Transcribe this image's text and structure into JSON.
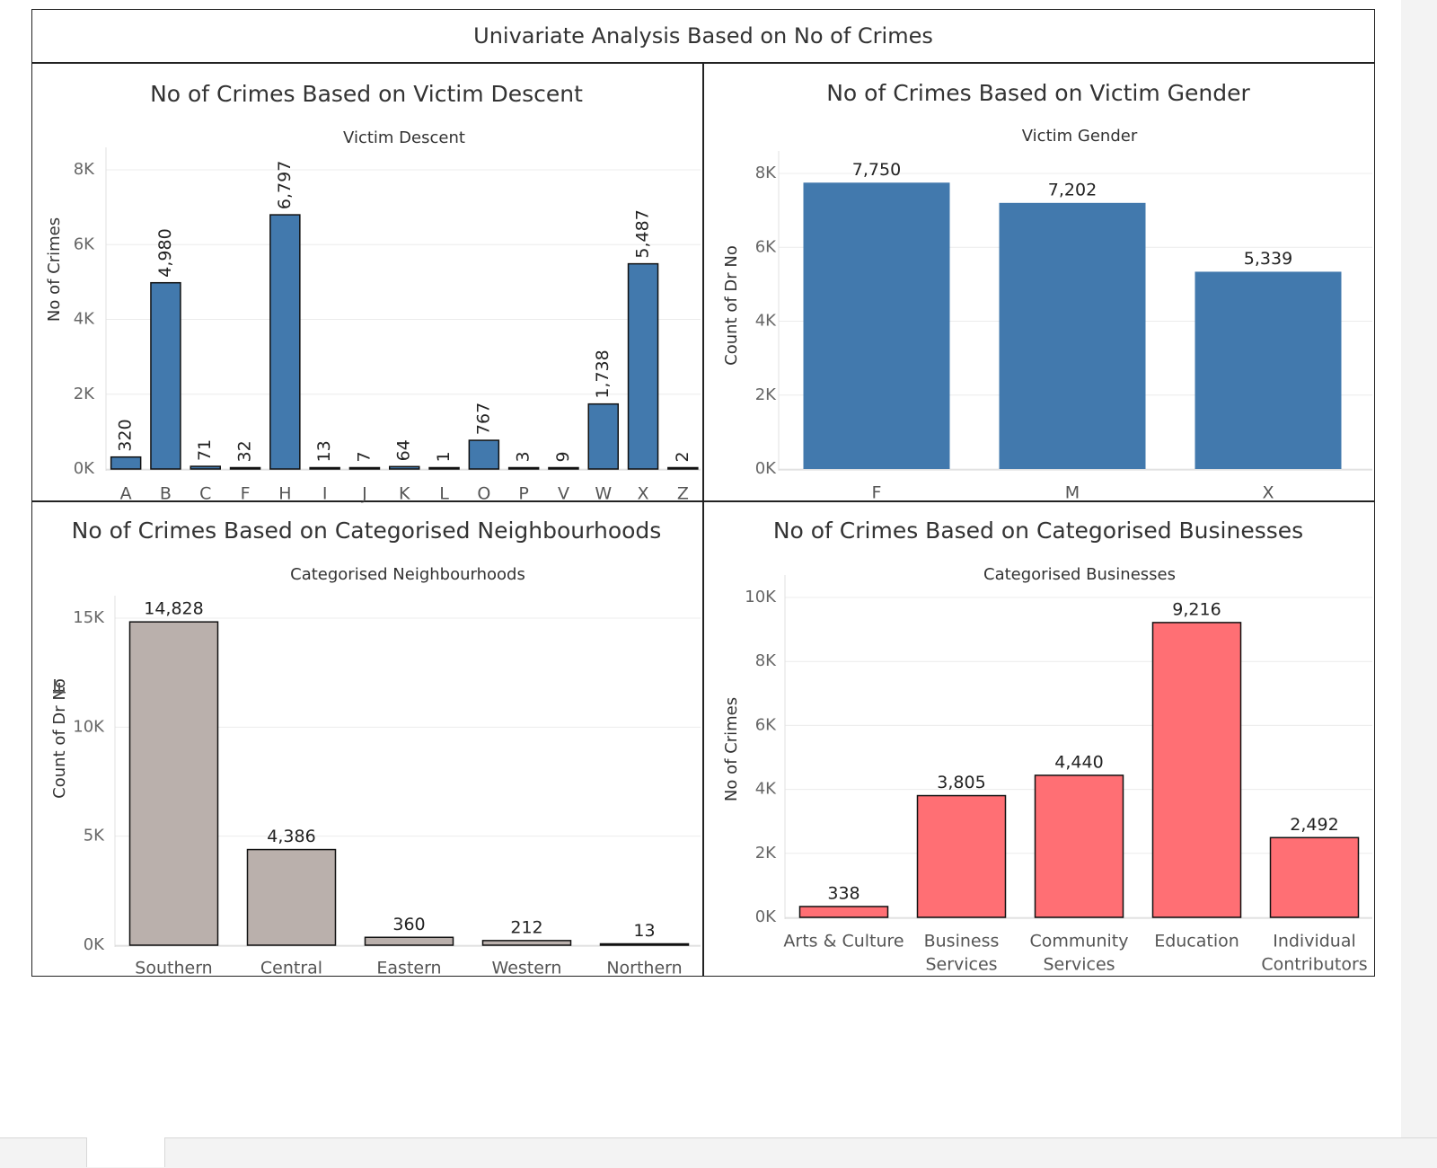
{
  "dashboard": {
    "title": "Univariate Analysis Based on No of Crimes"
  },
  "chart_data": [
    {
      "type": "bar",
      "title": "No of Crimes Based on Victim Descent",
      "header": "Victim Descent",
      "ylabel": "No of Crimes",
      "categories": [
        "A",
        "B",
        "C",
        "F",
        "H",
        "I",
        "J",
        "K",
        "L",
        "O",
        "P",
        "V",
        "W",
        "X",
        "Z"
      ],
      "values": [
        320,
        4980,
        71,
        32,
        6797,
        13,
        7,
        64,
        1,
        767,
        3,
        9,
        1738,
        5487,
        2
      ],
      "value_labels": [
        "320",
        "4,980",
        "71",
        "32",
        "6,797",
        "13",
        "7",
        "64",
        "1",
        "767",
        "3",
        "9",
        "1,738",
        "5,487",
        "2"
      ],
      "ylim": [
        0,
        8000
      ],
      "yticks": [
        0,
        2000,
        4000,
        6000,
        8000
      ],
      "ytick_labels": [
        "0K",
        "2K",
        "4K",
        "6K",
        "8K"
      ],
      "label_orientation": "vertical",
      "color": "#4279ad",
      "bar_outline": true
    },
    {
      "type": "bar",
      "title": "No of Crimes Based on Victim Gender",
      "header": "Victim Gender",
      "ylabel": "Count of Dr No",
      "categories": [
        "F",
        "M",
        "X"
      ],
      "values": [
        7750,
        7202,
        5339
      ],
      "value_labels": [
        "7,750",
        "7,202",
        "5,339"
      ],
      "ylim": [
        0,
        8000
      ],
      "yticks": [
        0,
        2000,
        4000,
        6000,
        8000
      ],
      "ytick_labels": [
        "0K",
        "2K",
        "4K",
        "6K",
        "8K"
      ],
      "label_orientation": "horizontal",
      "color": "#4279ad",
      "bar_outline": false
    },
    {
      "type": "bar",
      "title": "No of Crimes Based on Categorised Neighbourhoods",
      "header": "Categorised Neighbourhoods",
      "ylabel": "Count of Dr No",
      "sorted_indicator": true,
      "categories": [
        "Southern",
        "Central",
        "Eastern",
        "Western",
        "Northern"
      ],
      "values": [
        14828,
        4386,
        360,
        212,
        13
      ],
      "value_labels": [
        "14,828",
        "4,386",
        "360",
        "212",
        "13"
      ],
      "ylim": [
        0,
        15000
      ],
      "yticks": [
        0,
        5000,
        10000,
        15000
      ],
      "ytick_labels": [
        "0K",
        "5K",
        "10K",
        "15K"
      ],
      "label_orientation": "horizontal",
      "color": "#bab0ac",
      "bar_outline": true
    },
    {
      "type": "bar",
      "title": "No of Crimes Based on Categorised Businesses",
      "header": "Categorised Businesses",
      "ylabel": "No of Crimes",
      "categories": [
        [
          "Arts & Culture"
        ],
        [
          "Business",
          "Services"
        ],
        [
          "Community",
          "Services"
        ],
        [
          "Education"
        ],
        [
          "Individual",
          "Contributors"
        ]
      ],
      "values": [
        338,
        3805,
        4440,
        9216,
        2492
      ],
      "value_labels": [
        "338",
        "3,805",
        "4,440",
        "9,216",
        "2,492"
      ],
      "ylim": [
        0,
        10000
      ],
      "yticks": [
        0,
        2000,
        4000,
        6000,
        8000,
        10000
      ],
      "ytick_labels": [
        "0K",
        "2K",
        "4K",
        "6K",
        "8K",
        "10K"
      ],
      "label_orientation": "horizontal",
      "color": "#ff6f74",
      "bar_outline": true
    }
  ]
}
